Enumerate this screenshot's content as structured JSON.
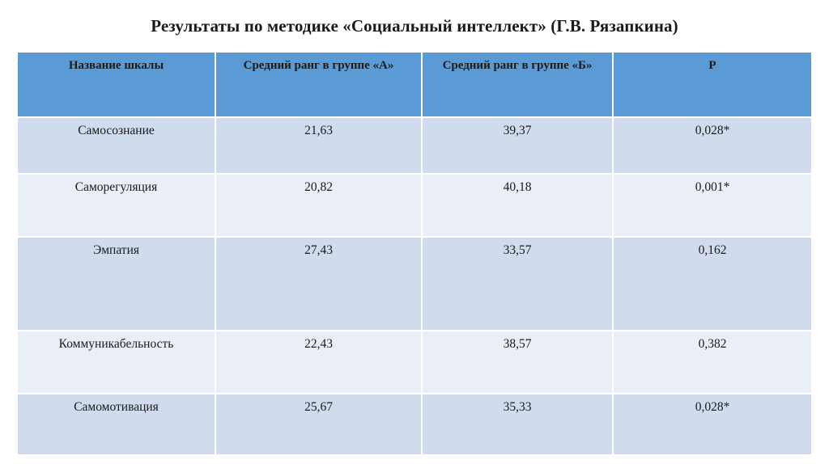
{
  "title": "Результаты по методике «Социальный интеллект» (Г.В. Рязапкина)",
  "table": {
    "headers": [
      "Название шкалы",
      "Средний ранг в группе «А»",
      "Средний ранг в группе «Б»",
      "Р"
    ],
    "rows": [
      [
        "Самосознание",
        "21,63",
        "39,37",
        "0,028*"
      ],
      [
        "Саморегуляция",
        "20,82",
        "40,18",
        "0,001*"
      ],
      [
        "Эмпатия",
        "27,43",
        "33,57",
        "0,162"
      ],
      [
        "Коммуникабельность",
        "22,43",
        "38,57",
        "0,382"
      ],
      [
        "Самомотивация",
        "25,67",
        "35,33",
        "0,028*"
      ]
    ]
  },
  "colors": {
    "header_bg": "#5b9bd5",
    "row_odd_bg": "#d0dcee",
    "row_even_bg": "#e9eef7"
  }
}
